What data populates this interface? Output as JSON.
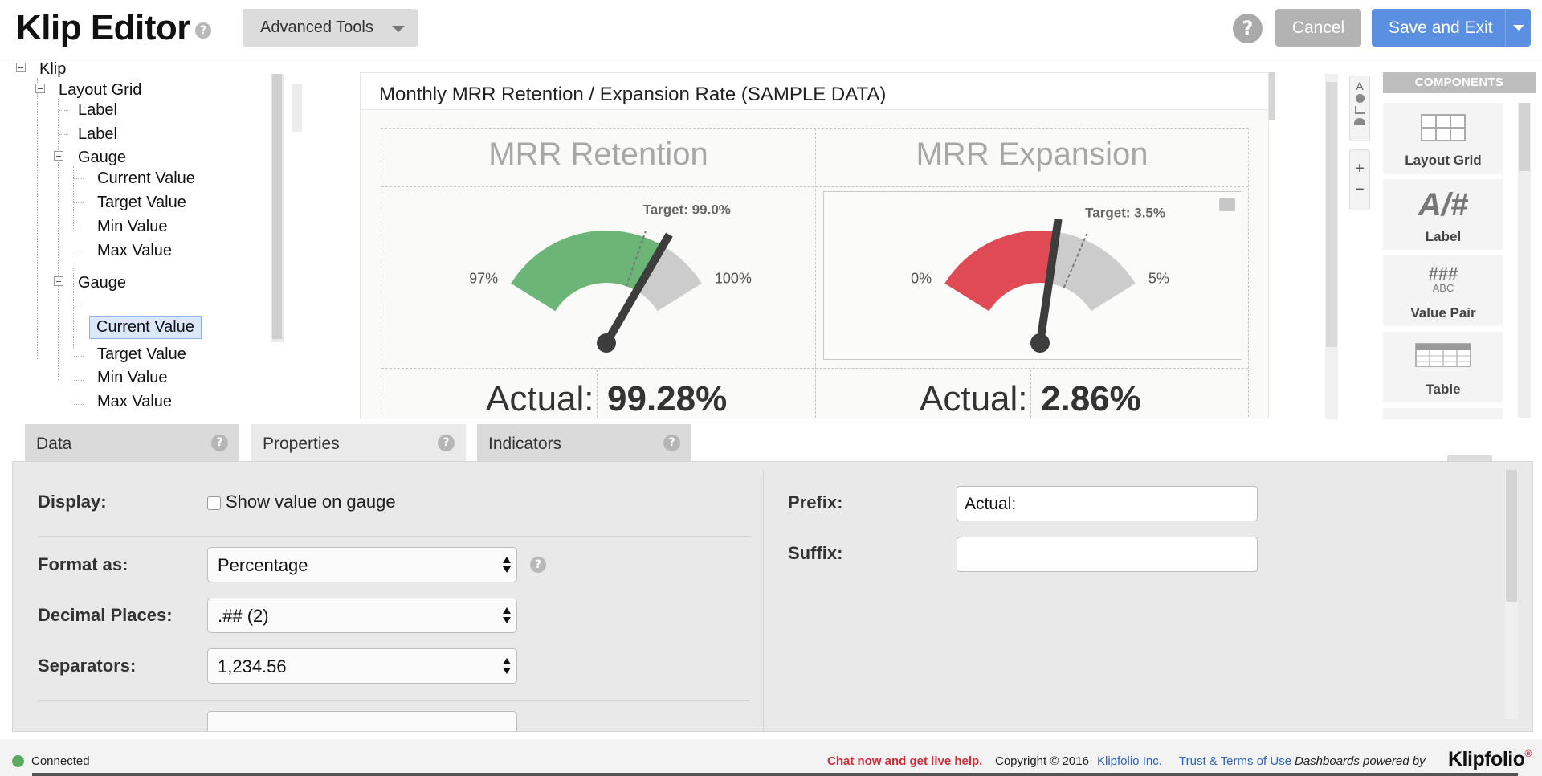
{
  "header": {
    "title": "Klip Editor",
    "title_help": "?",
    "advanced_tools": "Advanced Tools",
    "help": "?",
    "cancel": "Cancel",
    "save_exit": "Save and Exit"
  },
  "tree": {
    "root": "Klip",
    "layout_grid": "Layout Grid",
    "label1": "Label",
    "label2": "Label",
    "gauge1": {
      "name": "Gauge",
      "current": "Current Value",
      "target": "Target Value",
      "min": "Min Value",
      "max": "Max Value"
    },
    "gauge2": {
      "name": "Gauge",
      "current": "Current Value",
      "target": "Target Value",
      "min": "Min Value",
      "max": "Max Value"
    },
    "selected": "gauge2.current"
  },
  "klip": {
    "title": "Monthly MRR Retention / Expansion Rate (SAMPLE DATA)",
    "left": {
      "header": "MRR Retention",
      "target_label": "Target: 99.0%",
      "min_label": "97%",
      "max_label": "100%",
      "actual_prefix": "Actual:",
      "actual_value": "99.28%",
      "gauge": {
        "min": 97,
        "max": 100,
        "value": 99.28,
        "target": 99.0,
        "fill_color": "#6bb577"
      }
    },
    "right": {
      "header": "MRR Expansion",
      "target_label": "Target: 3.5%",
      "min_label": "0%",
      "max_label": "5%",
      "actual_prefix": "Actual:",
      "actual_value": "2.86%",
      "gauge": {
        "min": 0,
        "max": 5,
        "value": 2.86,
        "target": 3.5,
        "fill_color": "#e04a55"
      }
    }
  },
  "toolstrip": {
    "text_icon": "A",
    "zoom_in": "+",
    "zoom_out": "−"
  },
  "components": {
    "header": "COMPONENTS",
    "items": [
      {
        "label": "Layout Grid",
        "icon": "layout-grid-icon"
      },
      {
        "label": "Label",
        "icon": "label-icon",
        "glyph": "A/#"
      },
      {
        "label": "Value Pair",
        "icon": "value-pair-icon",
        "glyph": "###",
        "sub": "ABC"
      },
      {
        "label": "Table",
        "icon": "table-icon"
      }
    ]
  },
  "tabs": [
    {
      "label": "Data",
      "help": "?"
    },
    {
      "label": "Properties",
      "help": "?",
      "active": true
    },
    {
      "label": "Indicators",
      "help": "?"
    }
  ],
  "properties": {
    "display_label": "Display:",
    "show_value_label": "Show value on gauge",
    "show_value_checked": false,
    "format_label": "Format as:",
    "format_value": "Percentage",
    "format_help": "?",
    "decimal_label": "Decimal Places:",
    "decimal_value": ".## (2)",
    "separators_label": "Separators:",
    "separators_value": "1,234.56",
    "prefix_label": "Prefix:",
    "prefix_value": "Actual:",
    "suffix_label": "Suffix:",
    "suffix_value": ""
  },
  "footer": {
    "status": "Connected",
    "status_color": "#5aac63",
    "chat": "Chat now and get live help.",
    "copyright": "Copyright © 2016",
    "company": "Klipfolio Inc.",
    "terms": "Trust & Terms of Use",
    "powered": "Dashboards powered by",
    "logo": "Klipfolio"
  },
  "colors": {
    "save_button": "#5b8fe2",
    "cancel_button": "#b3b3b3",
    "gauge_empty": "#cccccc",
    "needle": "#3d3d3d",
    "chat_link": "#d42b3b",
    "link": "#2f63b8"
  }
}
